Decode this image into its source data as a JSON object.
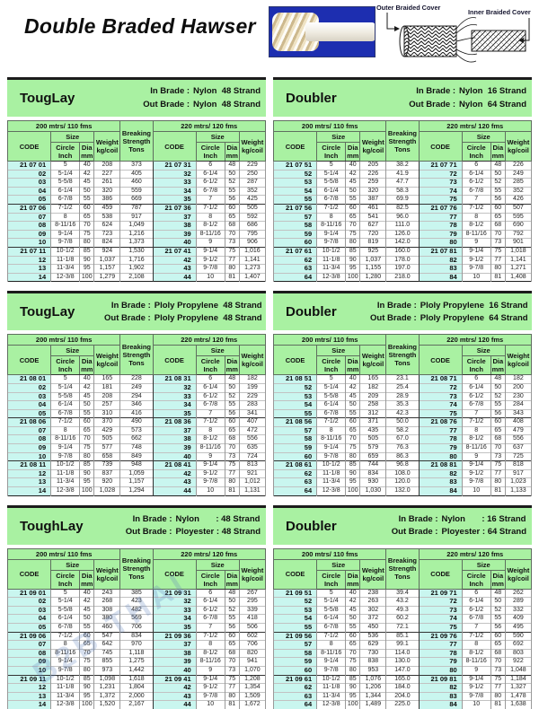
{
  "page": {
    "title": "Double Braded Hawser"
  },
  "diagram": {
    "outer_label": "Outer Braided Cover",
    "inner_label": "Inner Braided Cover"
  },
  "watermark": {
    "text": "B2B THAI"
  },
  "colors": {
    "header_green": "#a9f1a2",
    "code_cyan": "#c9f6ef",
    "photo_blue": "#1d2eb0"
  },
  "hdr": {
    "left_span": "200 mtrs/ 110 fms",
    "right_span": "220 mtrs/ 120 fms",
    "code": "CODE",
    "size": "Size",
    "circle": "Circle Inch",
    "dia": "Dia mm",
    "weight": "Weight kg/coil",
    "breaking": "Breaking Strength Tons",
    "in_label": "In Brade :",
    "out_label": "Out Brade :"
  },
  "blocks": [
    {
      "title": "TougLay",
      "in_value": "Nylon  48 Strand",
      "out_value": "Nylon  48 Strand",
      "left": [
        [
          "21 07 01",
          "5",
          "40",
          "208",
          "373"
        ],
        [
          "02",
          "5-1/4",
          "42",
          "227",
          "405"
        ],
        [
          "03",
          "5-5/8",
          "45",
          "261",
          "460"
        ],
        [
          "04",
          "6-1/4",
          "50",
          "320",
          "559"
        ],
        [
          "05",
          "6-7/8",
          "55",
          "386",
          "669"
        ],
        [
          "21 07 06",
          "7-1/2",
          "60",
          "459",
          "787"
        ],
        [
          "07",
          "8",
          "65",
          "538",
          "917"
        ],
        [
          "08",
          "8-11/16",
          "70",
          "624",
          "1,049"
        ],
        [
          "09",
          "9-1/4",
          "75",
          "723",
          "1,216"
        ],
        [
          "10",
          "9-7/8",
          "80",
          "824",
          "1,373"
        ],
        [
          "21 07 11",
          "10-1/2",
          "85",
          "924",
          "1,530"
        ],
        [
          "12",
          "11-1/8",
          "90",
          "1,037",
          "1,716"
        ],
        [
          "13",
          "11-3/4",
          "95",
          "1,157",
          "1,902"
        ],
        [
          "14",
          "12-3/8",
          "100",
          "1,279",
          "2,108"
        ]
      ],
      "right": [
        [
          "21 07 31",
          "6",
          "48",
          "229"
        ],
        [
          "32",
          "6-1/4",
          "50",
          "250"
        ],
        [
          "33",
          "6-1/2",
          "52",
          "287"
        ],
        [
          "34",
          "6-7/8",
          "55",
          "352"
        ],
        [
          "35",
          "7",
          "56",
          "425"
        ],
        [
          "21 07 36",
          "7-1/2",
          "60",
          "505"
        ],
        [
          "37",
          "8",
          "65",
          "592"
        ],
        [
          "38",
          "8-1/2",
          "68",
          "686"
        ],
        [
          "39",
          "8-11/16",
          "70",
          "795"
        ],
        [
          "40",
          "9",
          "73",
          "906"
        ],
        [
          "21 07 41",
          "9-1/4",
          "75",
          "1,016"
        ],
        [
          "42",
          "9-1/2",
          "77",
          "1,141"
        ],
        [
          "43",
          "9-7/8",
          "80",
          "1,273"
        ],
        [
          "44",
          "10",
          "81",
          "1,407"
        ]
      ]
    },
    {
      "title": "Doubler",
      "in_value": "Nylon  16 Strand",
      "out_value": "Nylon  64 Strand",
      "left": [
        [
          "21 07 51",
          "5",
          "40",
          "205",
          "38.2"
        ],
        [
          "52",
          "5-1/4",
          "42",
          "226",
          "41.9"
        ],
        [
          "53",
          "5-5/8",
          "45",
          "259",
          "47.7"
        ],
        [
          "54",
          "6-1/4",
          "50",
          "320",
          "58.3"
        ],
        [
          "55",
          "6-7/8",
          "55",
          "387",
          "69.9"
        ],
        [
          "21 07 56",
          "7-1/2",
          "60",
          "461",
          "82.5"
        ],
        [
          "57",
          "8",
          "65",
          "541",
          "96.0"
        ],
        [
          "58",
          "8-11/16",
          "70",
          "627",
          "111.0"
        ],
        [
          "59",
          "9-1/4",
          "75",
          "720",
          "126.0"
        ],
        [
          "60",
          "9-7/8",
          "80",
          "819",
          "142.0"
        ],
        [
          "21 07 61",
          "10-1/2",
          "85",
          "925",
          "160.0"
        ],
        [
          "62",
          "11-1/8",
          "90",
          "1,037",
          "178.0"
        ],
        [
          "63",
          "11-3/4",
          "95",
          "1,155",
          "197.0"
        ],
        [
          "64",
          "12-3/8",
          "100",
          "1,280",
          "218.0"
        ]
      ],
      "right": [
        [
          "21 07 71",
          "6",
          "48",
          "226"
        ],
        [
          "72",
          "6-1/4",
          "50",
          "249"
        ],
        [
          "73",
          "6-1/2",
          "52",
          "285"
        ],
        [
          "74",
          "6-7/8",
          "55",
          "352"
        ],
        [
          "75",
          "7",
          "56",
          "426"
        ],
        [
          "21 07 76",
          "7-1/2",
          "60",
          "507"
        ],
        [
          "77",
          "8",
          "65",
          "595"
        ],
        [
          "78",
          "8-1/2",
          "68",
          "690"
        ],
        [
          "79",
          "8-11/16",
          "70",
          "792"
        ],
        [
          "80",
          "9",
          "73",
          "901"
        ],
        [
          "21 07 81",
          "9-1/4",
          "75",
          "1,018"
        ],
        [
          "82",
          "9-1/2",
          "77",
          "1,141"
        ],
        [
          "83",
          "9-7/8",
          "80",
          "1,271"
        ],
        [
          "84",
          "10",
          "81",
          "1,408"
        ]
      ]
    },
    {
      "title": "TougLay",
      "in_value": "Ploly Propylene  48 Strand",
      "out_value": "Ploly Propylene  48 Strand",
      "left": [
        [
          "21 08 01",
          "5",
          "40",
          "165",
          "228"
        ],
        [
          "02",
          "5-1/4",
          "42",
          "181",
          "249"
        ],
        [
          "03",
          "5-5/8",
          "45",
          "208",
          "294"
        ],
        [
          "04",
          "6-1/4",
          "50",
          "257",
          "346"
        ],
        [
          "05",
          "6-7/8",
          "55",
          "310",
          "416"
        ],
        [
          "21 08 06",
          "7-1/2",
          "60",
          "370",
          "490"
        ],
        [
          "07",
          "8",
          "65",
          "429",
          "573"
        ],
        [
          "08",
          "8-11/16",
          "70",
          "505",
          "662"
        ],
        [
          "09",
          "9-1/4",
          "75",
          "577",
          "748"
        ],
        [
          "10",
          "9-7/8",
          "80",
          "658",
          "849"
        ],
        [
          "21 08 11",
          "10-1/2",
          "85",
          "739",
          "948"
        ],
        [
          "12",
          "11-1/8",
          "90",
          "837",
          "1,059"
        ],
        [
          "13",
          "11-3/4",
          "95",
          "920",
          "1,157"
        ],
        [
          "14",
          "12-3/8",
          "100",
          "1,028",
          "1,294"
        ]
      ],
      "right": [
        [
          "21 08 31",
          "6",
          "48",
          "182"
        ],
        [
          "32",
          "6-1/4",
          "50",
          "199"
        ],
        [
          "33",
          "6-1/2",
          "52",
          "229"
        ],
        [
          "34",
          "6-7/8",
          "55",
          "283"
        ],
        [
          "35",
          "7",
          "56",
          "341"
        ],
        [
          "21 08 36",
          "7-1/2",
          "60",
          "407"
        ],
        [
          "37",
          "8",
          "65",
          "472"
        ],
        [
          "38",
          "8-1/2",
          "68",
          "556"
        ],
        [
          "39",
          "8-11/16",
          "70",
          "635"
        ],
        [
          "40",
          "9",
          "73",
          "724"
        ],
        [
          "21 08 41",
          "9-1/4",
          "75",
          "813"
        ],
        [
          "42",
          "9-1/2",
          "77",
          "921"
        ],
        [
          "43",
          "9-7/8",
          "80",
          "1,012"
        ],
        [
          "44",
          "10",
          "81",
          "1,131"
        ]
      ]
    },
    {
      "title": "Doubler",
      "in_value": "Ploly Propylene  16 Strand",
      "out_value": "Ploly Propylene  64 Strand",
      "left": [
        [
          "21 08 51",
          "5",
          "40",
          "165",
          "23.1"
        ],
        [
          "52",
          "5-1/4",
          "42",
          "182",
          "25.4"
        ],
        [
          "53",
          "5-5/8",
          "45",
          "209",
          "28.9"
        ],
        [
          "54",
          "6-1/4",
          "50",
          "258",
          "35.3"
        ],
        [
          "55",
          "6-7/8",
          "55",
          "312",
          "42.3"
        ],
        [
          "21 08 56",
          "7-1/2",
          "60",
          "371",
          "50.0"
        ],
        [
          "57",
          "8",
          "65",
          "435",
          "58.2"
        ],
        [
          "58",
          "8-11/16",
          "70",
          "505",
          "67.0"
        ],
        [
          "59",
          "9-1/4",
          "75",
          "579",
          "76.3"
        ],
        [
          "60",
          "9-7/8",
          "80",
          "659",
          "86.3"
        ],
        [
          "21 08 61",
          "10-1/2",
          "85",
          "744",
          "96.8"
        ],
        [
          "62",
          "11-1/8",
          "90",
          "834",
          "108.0"
        ],
        [
          "63",
          "11-3/4",
          "95",
          "930",
          "120.0"
        ],
        [
          "64",
          "12-3/8",
          "100",
          "1,030",
          "132.0"
        ]
      ],
      "right": [
        [
          "21 08 71",
          "6",
          "48",
          "182"
        ],
        [
          "72",
          "6-1/4",
          "50",
          "200"
        ],
        [
          "73",
          "6-1/2",
          "52",
          "230"
        ],
        [
          "74",
          "6-7/8",
          "55",
          "284"
        ],
        [
          "75",
          "7",
          "56",
          "343"
        ],
        [
          "21 08 76",
          "7-1/2",
          "60",
          "408"
        ],
        [
          "77",
          "8",
          "65",
          "479"
        ],
        [
          "78",
          "8-1/2",
          "68",
          "556"
        ],
        [
          "79",
          "8-11/16",
          "70",
          "637"
        ],
        [
          "80",
          "9",
          "73",
          "725"
        ],
        [
          "21 08 81",
          "9-1/4",
          "75",
          "818"
        ],
        [
          "82",
          "9-1/2",
          "77",
          "917"
        ],
        [
          "83",
          "9-7/8",
          "80",
          "1,023"
        ],
        [
          "84",
          "10",
          "81",
          "1,133"
        ]
      ]
    },
    {
      "title": "ToughLay",
      "in_value": "Nylon       : 48 Strand",
      "out_value": "Ployester : 48 Strand",
      "left": [
        [
          "21 09 01",
          "5",
          "40",
          "243",
          "385"
        ],
        [
          "02",
          "5-1/4",
          "42",
          "268",
          "423"
        ],
        [
          "03",
          "5-5/8",
          "45",
          "308",
          "482"
        ],
        [
          "04",
          "6-1/4",
          "50",
          "380",
          "569"
        ],
        [
          "05",
          "6-7/8",
          "55",
          "460",
          "706"
        ],
        [
          "21 09 06",
          "7-1/2",
          "60",
          "547",
          "834"
        ],
        [
          "07",
          "8",
          "65",
          "642",
          "970"
        ],
        [
          "08",
          "8-11/16",
          "70",
          "745",
          "1,118"
        ],
        [
          "09",
          "9-1/4",
          "75",
          "855",
          "1,275"
        ],
        [
          "10",
          "9-7/8",
          "80",
          "973",
          "1,442"
        ],
        [
          "21 09 11",
          "10-1/2",
          "85",
          "1,098",
          "1,618"
        ],
        [
          "12",
          "11-1/8",
          "90",
          "1,231",
          "1,804"
        ],
        [
          "13",
          "11-3/4",
          "95",
          "1,372",
          "2,000"
        ],
        [
          "14",
          "12-3/8",
          "100",
          "1,520",
          "2,167"
        ]
      ],
      "right": [
        [
          "21 09 31",
          "6",
          "48",
          "267"
        ],
        [
          "32",
          "6-1/4",
          "50",
          "295"
        ],
        [
          "33",
          "6-1/2",
          "52",
          "339"
        ],
        [
          "34",
          "6-7/8",
          "55",
          "418"
        ],
        [
          "35",
          "7",
          "56",
          "506"
        ],
        [
          "21 09 36",
          "7-1/2",
          "60",
          "602"
        ],
        [
          "37",
          "8",
          "65",
          "706"
        ],
        [
          "38",
          "8-1/2",
          "68",
          "820"
        ],
        [
          "39",
          "8-11/16",
          "70",
          "941"
        ],
        [
          "40",
          "9",
          "73",
          "1,070"
        ],
        [
          "21 09 41",
          "9-1/4",
          "75",
          "1,208"
        ],
        [
          "42",
          "9-1/2",
          "77",
          "1,354"
        ],
        [
          "43",
          "9-7/8",
          "80",
          "1,509"
        ],
        [
          "44",
          "10",
          "81",
          "1,672"
        ]
      ]
    },
    {
      "title": "Doubler",
      "in_value": "Nylon       : 16 Strand",
      "out_value": "Ployester : 64 Strand",
      "left": [
        [
          "21 09 51",
          "5",
          "40",
          "238",
          "39.4"
        ],
        [
          "52",
          "5-1/4",
          "42",
          "263",
          "43.2"
        ],
        [
          "53",
          "5-5/8",
          "45",
          "302",
          "49.3"
        ],
        [
          "54",
          "6-1/4",
          "50",
          "372",
          "60.2"
        ],
        [
          "55",
          "6-7/8",
          "55",
          "450",
          "72.1"
        ],
        [
          "21 09 56",
          "7-1/2",
          "60",
          "536",
          "85.1"
        ],
        [
          "57",
          "8",
          "65",
          "629",
          "99.1"
        ],
        [
          "58",
          "8-11/16",
          "70",
          "730",
          "114.0"
        ],
        [
          "59",
          "9-1/4",
          "75",
          "838",
          "130.0"
        ],
        [
          "60",
          "9-7/8",
          "80",
          "953",
          "147.0"
        ],
        [
          "21 09 61",
          "10-1/2",
          "85",
          "1,076",
          "165.0"
        ],
        [
          "62",
          "11-1/8",
          "90",
          "1,206",
          "184.0"
        ],
        [
          "63",
          "11-3/4",
          "95",
          "1,344",
          "204.0"
        ],
        [
          "64",
          "12-3/8",
          "100",
          "1,489",
          "225.0"
        ]
      ],
      "right": [
        [
          "21 09 71",
          "6",
          "48",
          "262"
        ],
        [
          "72",
          "6-1/4",
          "50",
          "289"
        ],
        [
          "73",
          "6-1/2",
          "52",
          "332"
        ],
        [
          "74",
          "6-7/8",
          "55",
          "409"
        ],
        [
          "75",
          "7",
          "56",
          "495"
        ],
        [
          "21 09 76",
          "7-1/2",
          "60",
          "590"
        ],
        [
          "77",
          "8",
          "65",
          "692"
        ],
        [
          "78",
          "8-1/2",
          "68",
          "803"
        ],
        [
          "79",
          "8-11/16",
          "70",
          "922"
        ],
        [
          "80",
          "9",
          "73",
          "1,048"
        ],
        [
          "21 09 81",
          "9-1/4",
          "75",
          "1,184"
        ],
        [
          "82",
          "9-1/2",
          "77",
          "1,327"
        ],
        [
          "83",
          "9-7/8",
          "80",
          "1,478"
        ],
        [
          "84",
          "10",
          "81",
          "1,638"
        ]
      ]
    }
  ]
}
